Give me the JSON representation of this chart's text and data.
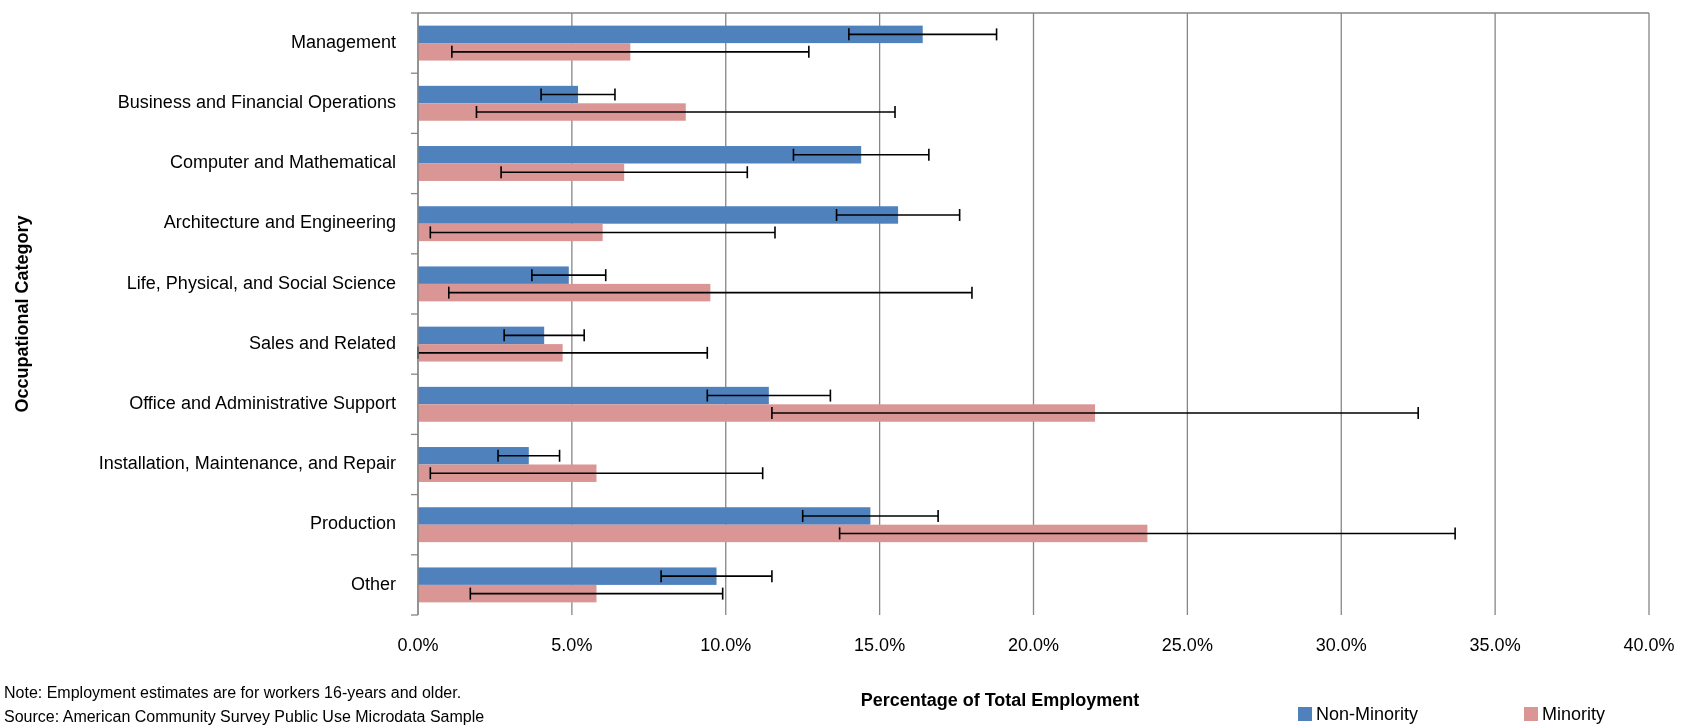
{
  "chart_data": {
    "type": "bar",
    "orientation": "horizontal",
    "xlabel": "Percentage of Total Employment",
    "ylabel": "Occupational Category",
    "categories": [
      "Management",
      "Business and Financial Operations",
      "Computer and Mathematical",
      "Architecture and Engineering",
      "Life, Physical, and Social Science",
      "Sales and Related",
      "Office and Administrative Support",
      "Installation, Maintenance, and Repair",
      "Production",
      "Other"
    ],
    "series": [
      {
        "name": "Non-Minority",
        "color": "#4f81bd",
        "values": [
          16.4,
          5.2,
          14.4,
          15.6,
          4.9,
          4.1,
          11.4,
          3.6,
          14.7,
          9.7
        ],
        "errors": [
          2.4,
          1.2,
          2.2,
          2.0,
          1.2,
          1.3,
          2.0,
          1.0,
          2.2,
          1.8
        ]
      },
      {
        "name": "Minority",
        "color": "#d99694",
        "values": [
          6.9,
          8.7,
          6.7,
          6.0,
          9.5,
          4.7,
          22.0,
          5.8,
          23.7,
          5.8
        ],
        "errors": [
          5.8,
          6.8,
          4.0,
          5.6,
          8.5,
          [
            0,
            9.4
          ],
          10.5,
          5.4,
          10.0,
          4.1
        ]
      }
    ],
    "xlim": [
      0,
      40
    ],
    "xticks": [
      {
        "value": 0,
        "label": "0.0%"
      },
      {
        "value": 5,
        "label": "5.0%"
      },
      {
        "value": 10,
        "label": "10.0%"
      },
      {
        "value": 15,
        "label": "15.0%"
      },
      {
        "value": 20,
        "label": "20.0%"
      },
      {
        "value": 25,
        "label": "25.0%"
      },
      {
        "value": 30,
        "label": "30.0%"
      },
      {
        "value": 35,
        "label": "35.0%"
      },
      {
        "value": 40,
        "label": "40.0%"
      }
    ],
    "grid": "x",
    "legend": "bottom right",
    "annotations": [
      "Note: Employment estimates are for workers 16-years and older.",
      "Source: American Community Survey Public Use Microdata Sample"
    ]
  }
}
